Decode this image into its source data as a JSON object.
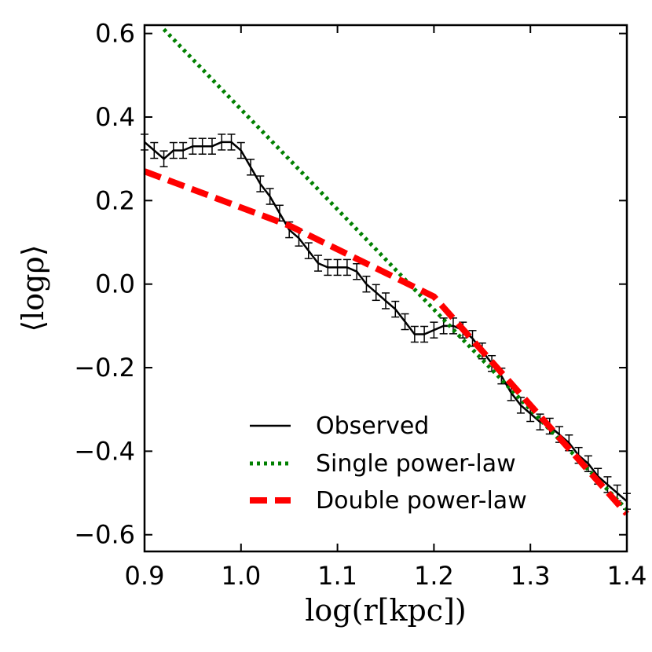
{
  "chart_data": {
    "type": "line",
    "xlabel": "log(r[kpc])",
    "ylabel": "⟨logρ⟩",
    "xlim": [
      0.9,
      1.4
    ],
    "ylim": [
      -0.64,
      0.62
    ],
    "xticks": [
      0.9,
      1.0,
      1.1,
      1.2,
      1.3,
      1.4
    ],
    "xtick_labels": [
      "0.9",
      "1.0",
      "1.1",
      "1.2",
      "1.3",
      "1.4"
    ],
    "yticks": [
      0.6,
      0.4,
      0.2,
      0.0,
      -0.2,
      -0.4,
      -0.6
    ],
    "ytick_labels": [
      "0.6",
      "0.4",
      "0.2",
      "0.0",
      "−0.2",
      "−0.4",
      "−0.6"
    ],
    "grid": false,
    "legend_position": "lower-right",
    "series": [
      {
        "name": "Observed",
        "style": "solid",
        "color": "#000000",
        "error_bars": true,
        "x": [
          0.9,
          0.91,
          0.92,
          0.93,
          0.94,
          0.95,
          0.96,
          0.97,
          0.98,
          0.99,
          1.0,
          1.01,
          1.02,
          1.03,
          1.04,
          1.05,
          1.06,
          1.07,
          1.08,
          1.09,
          1.1,
          1.11,
          1.12,
          1.13,
          1.14,
          1.15,
          1.16,
          1.17,
          1.18,
          1.19,
          1.2,
          1.21,
          1.22,
          1.23,
          1.24,
          1.25,
          1.26,
          1.27,
          1.28,
          1.29,
          1.3,
          1.31,
          1.32,
          1.33,
          1.34,
          1.35,
          1.36,
          1.37,
          1.38,
          1.39,
          1.4
        ],
        "y": [
          0.34,
          0.32,
          0.3,
          0.32,
          0.32,
          0.33,
          0.33,
          0.33,
          0.34,
          0.34,
          0.32,
          0.28,
          0.24,
          0.21,
          0.17,
          0.13,
          0.11,
          0.08,
          0.05,
          0.04,
          0.04,
          0.04,
          0.03,
          0.0,
          -0.02,
          -0.04,
          -0.06,
          -0.09,
          -0.12,
          -0.12,
          -0.11,
          -0.1,
          -0.1,
          -0.11,
          -0.13,
          -0.16,
          -0.19,
          -0.22,
          -0.26,
          -0.29,
          -0.31,
          -0.33,
          -0.34,
          -0.36,
          -0.38,
          -0.41,
          -0.43,
          -0.46,
          -0.48,
          -0.5,
          -0.52
        ]
      },
      {
        "name": "Single power-law",
        "style": "dotted",
        "color": "#008000",
        "x": [
          0.92,
          1.4
        ],
        "y": [
          0.61,
          -0.54
        ]
      },
      {
        "name": "Double power-law",
        "style": "dashed",
        "color": "#ff0000",
        "x": [
          0.9,
          1.05,
          1.2,
          1.4
        ],
        "y": [
          0.27,
          0.14,
          -0.03,
          -0.55
        ]
      }
    ]
  }
}
